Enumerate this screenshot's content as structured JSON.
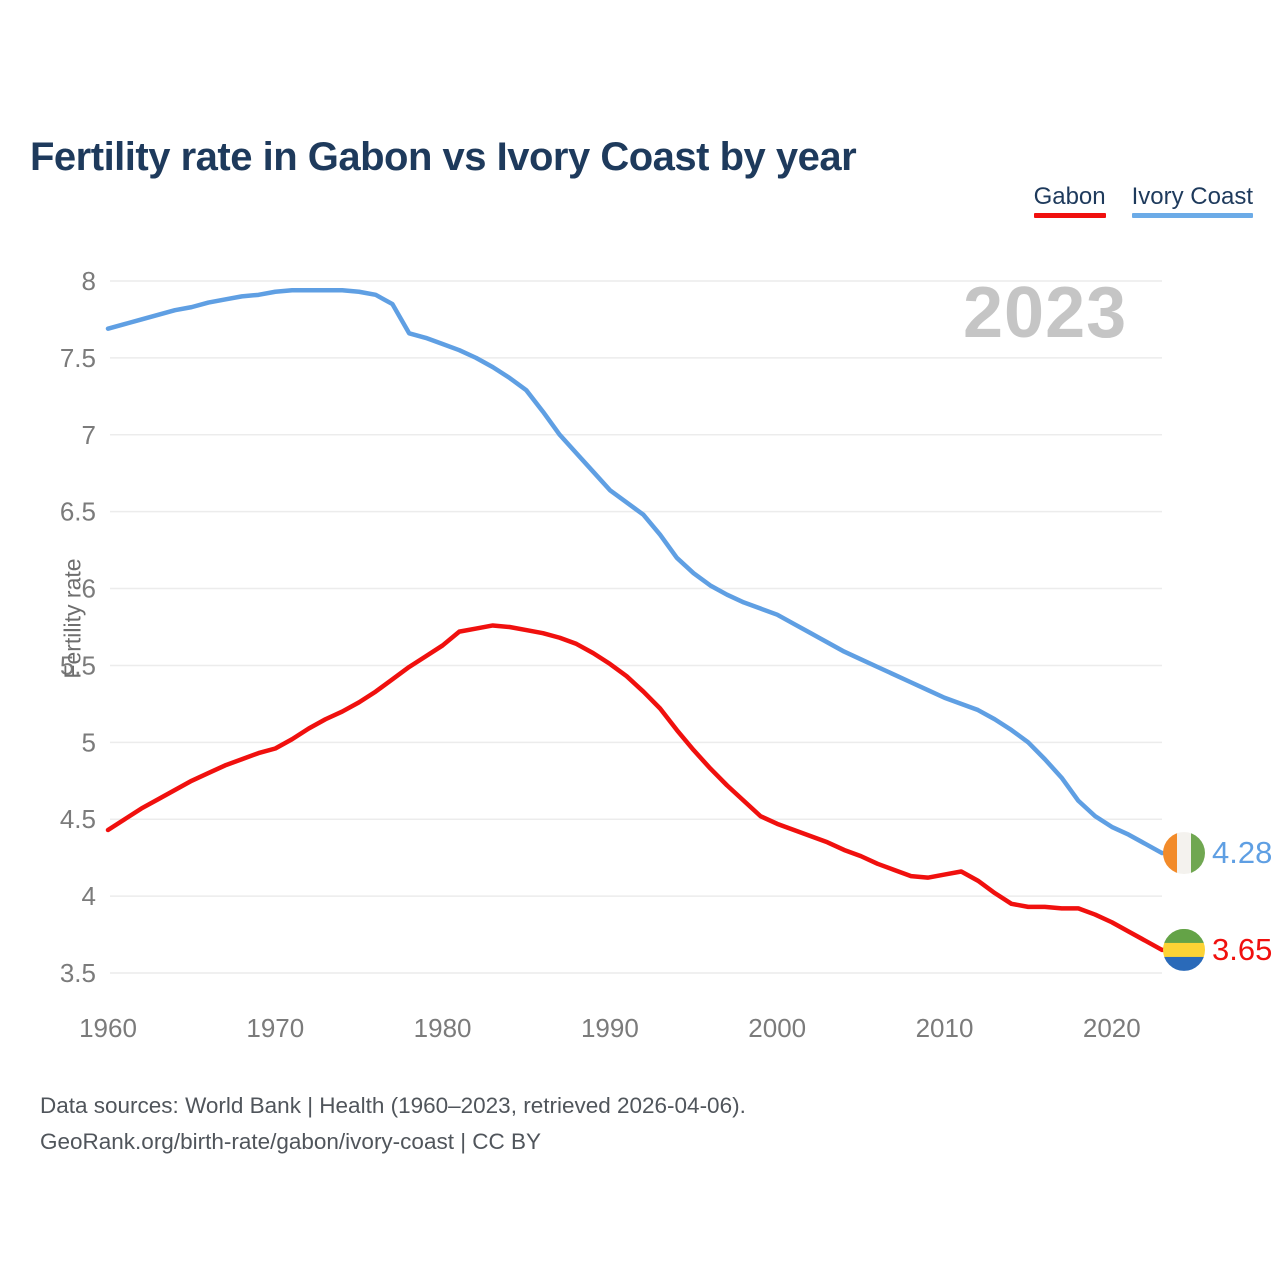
{
  "title": "Fertility rate in Gabon vs Ivory Coast by year",
  "watermark": "2023",
  "legend": [
    {
      "label": "Gabon",
      "color": "#f0100e"
    },
    {
      "label": "Ivory Coast",
      "color": "#6cabe7"
    }
  ],
  "footer": {
    "line1": "Data sources: World Bank | Health (1960–2023, retrieved 2026-04-06).",
    "line2": "GeoRank.org/birth-rate/gabon/ivory-coast | CC BY"
  },
  "chart_data": {
    "type": "line",
    "title": "Fertility rate in Gabon vs Ivory Coast by year",
    "xlabel": "",
    "ylabel": "Fertility rate",
    "ylim": [
      3.5,
      8
    ],
    "y_ticks": [
      8,
      7.5,
      7,
      6.5,
      6,
      5.5,
      5,
      4.5,
      4,
      3.5
    ],
    "x_ticks": [
      1960,
      1970,
      1980,
      1990,
      2000,
      2010,
      2020
    ],
    "grid": "horizontal",
    "legend_position": "top-right",
    "x": [
      1960,
      1961,
      1962,
      1963,
      1964,
      1965,
      1966,
      1967,
      1968,
      1969,
      1970,
      1971,
      1972,
      1973,
      1974,
      1975,
      1976,
      1977,
      1978,
      1979,
      1980,
      1981,
      1982,
      1983,
      1984,
      1985,
      1986,
      1987,
      1988,
      1989,
      1990,
      1991,
      1992,
      1993,
      1994,
      1995,
      1996,
      1997,
      1998,
      1999,
      2000,
      2001,
      2002,
      2003,
      2004,
      2005,
      2006,
      2007,
      2008,
      2009,
      2010,
      2011,
      2012,
      2013,
      2014,
      2015,
      2016,
      2017,
      2018,
      2019,
      2020,
      2021,
      2022,
      2023
    ],
    "series": [
      {
        "name": "Ivory Coast",
        "color": "#5f9fe3",
        "end_label": "4.28",
        "end_value": 4.28,
        "flag": {
          "name": "ivory-coast-flag",
          "direction": "vertical",
          "stripes": [
            "#f28b2a",
            "#f4f2ee",
            "#70a751"
          ]
        },
        "values": [
          7.69,
          7.72,
          7.75,
          7.78,
          7.81,
          7.83,
          7.86,
          7.88,
          7.9,
          7.91,
          7.93,
          7.94,
          7.94,
          7.94,
          7.94,
          7.93,
          7.91,
          7.85,
          7.66,
          7.63,
          7.59,
          7.55,
          7.5,
          7.44,
          7.37,
          7.29,
          7.15,
          7.0,
          6.88,
          6.76,
          6.64,
          6.56,
          6.48,
          6.35,
          6.2,
          6.1,
          6.02,
          5.96,
          5.91,
          5.87,
          5.83,
          5.77,
          5.71,
          5.65,
          5.59,
          5.54,
          5.49,
          5.44,
          5.39,
          5.34,
          5.29,
          5.25,
          5.21,
          5.15,
          5.08,
          5.0,
          4.89,
          4.77,
          4.62,
          4.52,
          4.45,
          4.4,
          4.34,
          4.28
        ]
      },
      {
        "name": "Gabon",
        "color": "#f0100e",
        "end_label": "3.65",
        "end_value": 3.65,
        "flag": {
          "name": "gabon-flag",
          "direction": "horizontal",
          "stripes": [
            "#64a347",
            "#fcd335",
            "#2a6ab9"
          ]
        },
        "values": [
          4.43,
          4.5,
          4.57,
          4.63,
          4.69,
          4.75,
          4.8,
          4.85,
          4.89,
          4.93,
          4.96,
          5.02,
          5.09,
          5.15,
          5.2,
          5.26,
          5.33,
          5.41,
          5.49,
          5.56,
          5.63,
          5.72,
          5.74,
          5.76,
          5.75,
          5.73,
          5.71,
          5.68,
          5.64,
          5.58,
          5.51,
          5.43,
          5.33,
          5.22,
          5.08,
          4.95,
          4.83,
          4.72,
          4.62,
          4.52,
          4.47,
          4.43,
          4.39,
          4.35,
          4.3,
          4.26,
          4.21,
          4.17,
          4.13,
          4.12,
          4.14,
          4.16,
          4.1,
          4.02,
          3.95,
          3.93,
          3.93,
          3.92,
          3.92,
          3.88,
          3.83,
          3.77,
          3.71,
          3.65
        ]
      }
    ]
  }
}
